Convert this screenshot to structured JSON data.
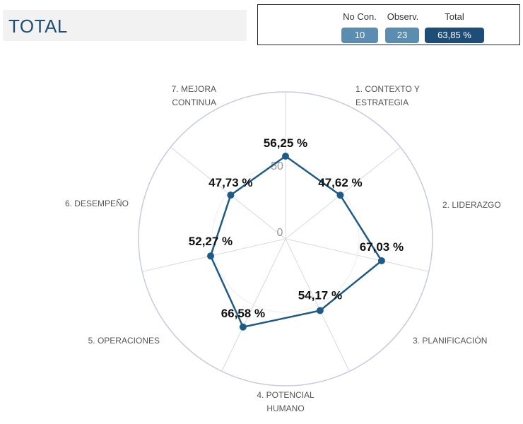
{
  "header": {
    "title": "TOTAL"
  },
  "summary": {
    "no_con_label": "No Con.",
    "observ_label": "Observ.",
    "total_label": "Total",
    "no_con_value": "10",
    "observ_value": "23",
    "total_value": "63,85 %"
  },
  "chart_data": {
    "type": "radar",
    "title": "",
    "categories": [
      [
        "1. CONTEXTO Y",
        "ESTRATEGIA"
      ],
      [
        "2. LIDERAZGO"
      ],
      [
        "3. PLANIFICACIÓN"
      ],
      [
        "4. POTENCIAL",
        "HUMANO"
      ],
      [
        "5. OPERACIONES"
      ],
      [
        "6. DESEMPEÑO"
      ],
      [
        "7. MEJORA",
        "CONTINUA"
      ]
    ],
    "values": [
      56.25,
      47.62,
      67.03,
      54.17,
      66.58,
      52.27,
      47.73
    ],
    "value_labels": [
      "56,25 %",
      "47,62 %",
      "67,03 %",
      "54,17 %",
      "66,58 %",
      "52,27 %",
      "47,73 %"
    ],
    "range": [
      0,
      100
    ],
    "tick_labels": [
      "0",
      "50"
    ],
    "grid": true,
    "colors": {
      "series": "#1e5b86",
      "grid": "#d6d9e6",
      "outer": "#c6cbe0"
    }
  }
}
